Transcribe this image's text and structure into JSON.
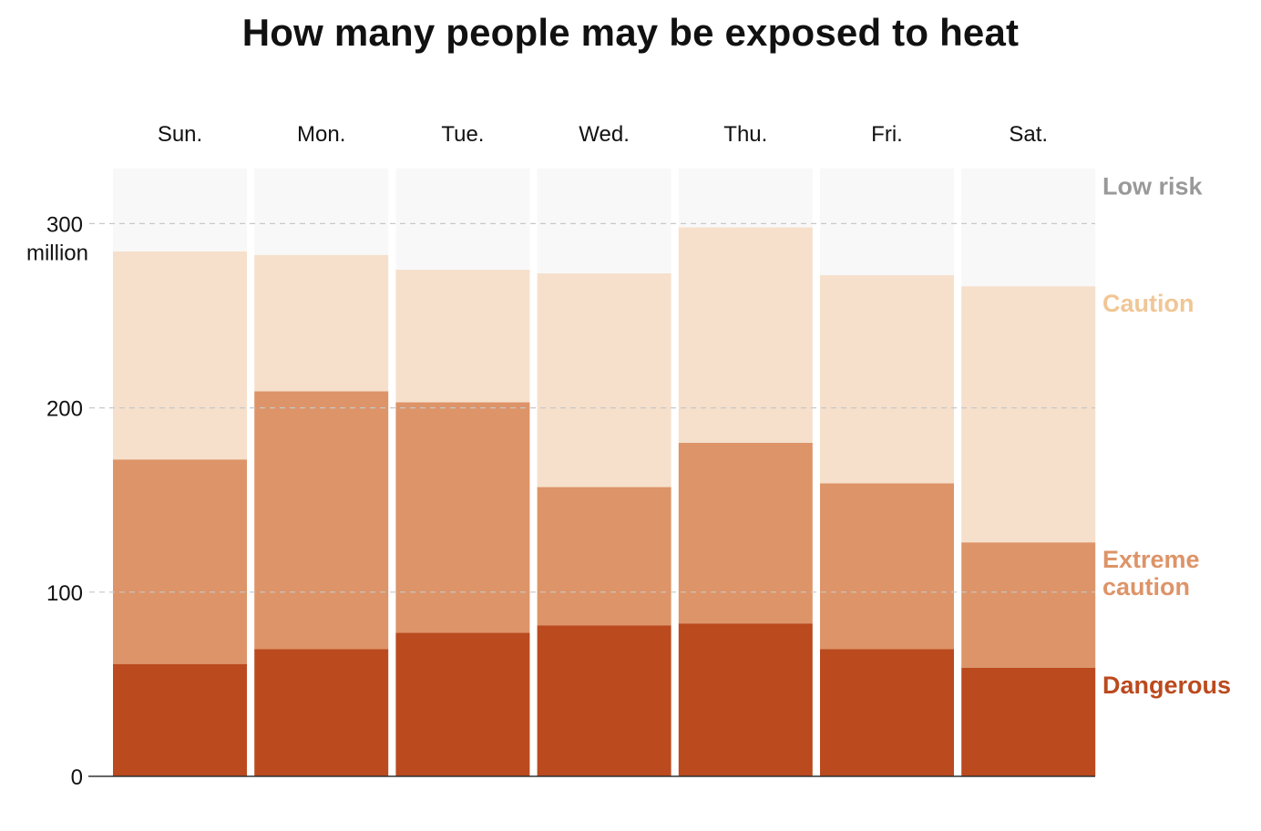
{
  "chart_data": {
    "type": "bar",
    "stacked": true,
    "title": "How many people may be exposed to heat",
    "ylabel": "million",
    "ylim": [
      0,
      330
    ],
    "yticks": [
      0,
      100,
      200,
      300
    ],
    "ytick_labels": [
      "0",
      "100",
      "200",
      "300"
    ],
    "categories": [
      "Sun.",
      "Mon.",
      "Tue.",
      "Wed.",
      "Thu.",
      "Fri.",
      "Sat."
    ],
    "series": [
      {
        "name": "Dangerous",
        "label_lines": [
          "Dangerous"
        ],
        "color": "#bb4a1e",
        "values": [
          61,
          69,
          78,
          82,
          83,
          69,
          59
        ]
      },
      {
        "name": "Extreme caution",
        "label_lines": [
          "Extreme",
          "caution"
        ],
        "color": "#dd9468",
        "values": [
          111,
          140,
          125,
          75,
          98,
          90,
          68
        ]
      },
      {
        "name": "Caution",
        "label_lines": [
          "Caution"
        ],
        "color": "#f6e0cc",
        "label_color": "#f0c696",
        "values": [
          113,
          74,
          72,
          116,
          117,
          113,
          139
        ]
      },
      {
        "name": "Low risk",
        "label_lines": [
          "Low risk"
        ],
        "color": "#f8f8f8",
        "label_color": "#999999",
        "values": [
          45,
          47,
          55,
          57,
          32,
          59,
          64
        ]
      }
    ],
    "grid": true,
    "legend_position": "right"
  }
}
